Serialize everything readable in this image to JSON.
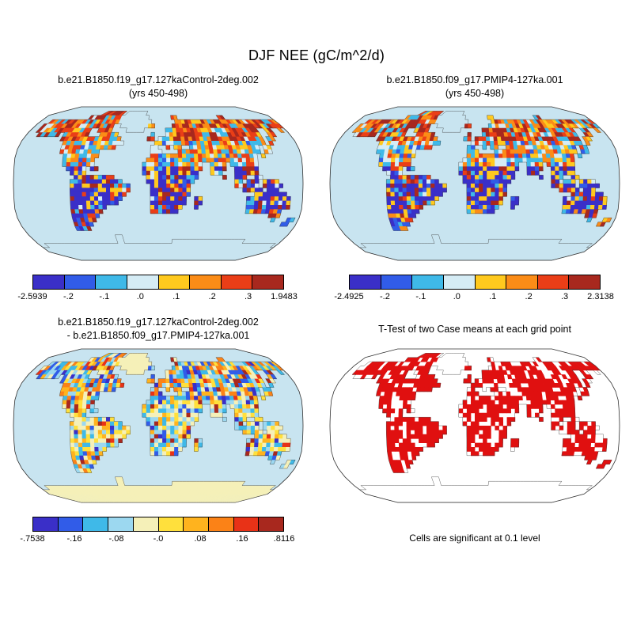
{
  "title": "DJF NEE (gC/m^2/d)",
  "panels": [
    {
      "title_line1": "b.e21.B1850.f19_g17.127kaControl-2deg.002",
      "title_line2": "(yrs 450-498)",
      "caption": "",
      "map_type": "nee",
      "colorbar": {
        "palette": "palette8",
        "labels": [
          "-2.5939",
          "-.2",
          "-.1",
          ".0",
          ".1",
          ".2",
          ".3",
          "1.9483"
        ]
      }
    },
    {
      "title_line1": "b.e21.B1850.f09_g17.PMIP4-127ka.001",
      "title_line2": "(yrs 450-498)",
      "caption": "",
      "map_type": "nee",
      "colorbar": {
        "palette": "palette8",
        "labels": [
          "-2.4925",
          "-.2",
          "-.1",
          ".0",
          ".1",
          ".2",
          ".3",
          "2.3138"
        ]
      }
    },
    {
      "title_line1": "b.e21.B1850.f19_g17.127kaControl-2deg.002",
      "title_line2": "- b.e21.B1850.f09_g17.PMIP4-127ka.001",
      "caption": "",
      "map_type": "diff",
      "colorbar": {
        "palette": "palette10",
        "labels": [
          "-.7538",
          "-.16",
          "-.08",
          "-.0",
          ".08",
          ".16",
          ".8116"
        ]
      }
    },
    {
      "title_line1": "T-Test of two Case means at each grid point",
      "title_line2": "",
      "caption": "Cells are significant at 0.1 level",
      "map_type": "ttest",
      "colorbar": null
    }
  ],
  "colors": {
    "ocean": "#C8E4F0",
    "coastline": "#3a3a3a",
    "ice_diff": "#F5F0B8",
    "significant": "#E01010",
    "palette8": [
      "#3A2FC8",
      "#315CE8",
      "#3FB9E8",
      "#D5ECF5",
      "#FFC91E",
      "#FB8C17",
      "#EA3E17",
      "#A8281E"
    ],
    "palette10": [
      "#3A2FC8",
      "#315CE8",
      "#3FB9E8",
      "#9CD8F0",
      "#F5F0B8",
      "#FFE03C",
      "#FFB31E",
      "#FB8217",
      "#E83217",
      "#A8281E"
    ]
  },
  "map": {
    "landmask_rle": [
      "0*72",
      "0*17,1*7,0*1,G*7,0*40",
      "0*14,1*10,G*9,0*7,1*2,0*13,1*2,0*15",
      "0*3,1*21,G*10,0*7,1*31",
      "0*2,1*21,0*2,G*8,1*2,0*5,1*32",
      "0*2,1*15,0*2,1*4,0*4,G*5,0*6,1*26,0*2,1*2,0*2,1*1,0*1",
      "0*3,1*6,0*1,1*7,0*3,1*5,0*9,1*1,0*3,1*26,0*2,1*2,0*4",
      "0*10,1*16,0*7,1*2,0*1,1*28,0*1,1*2,0*5",
      "0*11,1*16,0*8,1*29,0*1,1*1,0*6",
      "0*11,1*14,0*9,1*2,0*2,1*1,0*1,1*2,0*2,1*18,0*1,1*2,0*7",
      "0*11,1*10,0*13,1*3,0*4,1*21,0*1,1*2,0*7",
      "0*12,1*9,0*13,1*27,0*1,1*1,0*9",
      "0*12,1*8,0*13,1*28,0*11",
      "0*12,1*8,0*12,1*15,0*2,1*4,0*1,1*7,0*11",
      "0*13,1*5,0*1,1*2,0*11,1*15,0*2,1*4,0*2,1*6,0*11",
      "0*14,1*4,0*14,1*14,0*3,1*3,0*3,1*6,0*11",
      "0*15,1*10,0*8,1*13,0*6,1*1,0*2,1*3,0*2,1*2,0*10",
      "0*14,1*13,0*6,1*12,0*10,1*2,0*1,1*3,0*1,1*4,0*6",
      "0*14,1*15,0*5,1*10,0*11,1*6,0*1,1*5,0*5",
      "0*14,1*15,0*5,1*10,0*13,1*5,0*1,1*3,0*6",
      "0*14,1*14,0*6,1*10,0*16,1*8,0*4",
      "0*14,1*13,0*7,1*9,0*2,1*2,0*11,1*11,0*3",
      "0*14,1*12,0*8,1*9,0*2,1*2,0*11,1*11,0*3",
      "0*14,1*9,0*11,1*8,0*3,1*1,0*12,1*11,0*3",
      "0*14,1*8,0*12,1*7,0*17,1*9,0*5",
      "0*14,1*7,0*43,1*3,0*5",
      "0*14,1*6,0*45,1*1,0*3,1*2,0*1",
      "0*14,1*5,0*49,1*2,0*2",
      "0*14,1*4,0*54",
      "0*72",
      "0*24,A*2,0*46",
      "0*24,A*2,0*14,A*21,0*11",
      "0*2,A*69,0*1",
      "A*72",
      "A*72",
      "A*72"
    ]
  },
  "chart_data": {
    "type": "heatmap",
    "title": "DJF NEE (gC/m^2/d)",
    "layout": "2x2 world maps, Robinson projection, discrete colorbars below each data map",
    "panels": [
      {
        "title": "b.e21.B1850.f19_g17.127kaControl-2deg.002 (yrs 450-498)",
        "variable": "DJF NEE (gC/m^2/d)",
        "colorbar_ticks": [
          -2.5939,
          -0.2,
          -0.1,
          0.0,
          0.1,
          0.2,
          0.3,
          1.9483
        ],
        "min": -2.5939,
        "max": 1.9483,
        "palette": "blue-to-red, 8 classes"
      },
      {
        "title": "b.e21.B1850.f09_g17.PMIP4-127ka.001 (yrs 450-498)",
        "variable": "DJF NEE (gC/m^2/d)",
        "colorbar_ticks": [
          -2.4925,
          -0.2,
          -0.1,
          0.0,
          0.1,
          0.2,
          0.3,
          2.3138
        ],
        "min": -2.4925,
        "max": 2.3138,
        "palette": "blue-to-red, 8 classes"
      },
      {
        "title": "b.e21.B1850.f19_g17.127kaControl-2deg.002 - b.e21.B1850.f09_g17.PMIP4-127ka.001",
        "variable": "difference of case means",
        "colorbar_ticks": [
          -0.7538,
          -0.16,
          -0.08,
          -0.0,
          0.08,
          0.16,
          0.8116
        ],
        "min": -0.7538,
        "max": 0.8116,
        "palette": "blue-yellow-red, 10 classes"
      },
      {
        "title": "T-Test of two Case means at each grid point",
        "note": "Cells are significant at 0.1 level",
        "encoding": "red cell = significant at 0.1 level, white = not significant"
      }
    ]
  }
}
